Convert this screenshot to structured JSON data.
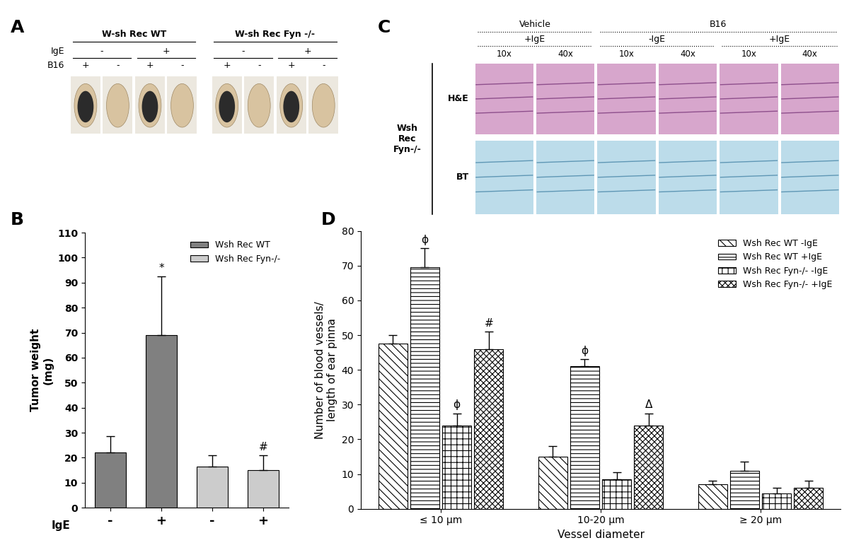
{
  "panel_a": {
    "panel": "A",
    "row_labels": [
      "IgE",
      "B16"
    ],
    "groups": [
      {
        "title": "W-sh Rec WT",
        "ige": [
          "-",
          "+"
        ],
        "b16": [
          "+",
          "-",
          "+",
          "-"
        ]
      },
      {
        "title": "W-sh Rec Fyn -/-",
        "ige": [
          "-",
          "+"
        ],
        "b16": [
          "+",
          "-",
          "+",
          "-"
        ]
      }
    ]
  },
  "panel_c": {
    "panel": "C",
    "strain": "Wsh\nRec\nFyn-/-",
    "rows": [
      "H&E",
      "BT"
    ],
    "groups": [
      {
        "text": "Vehicle",
        "conditions": [
          {
            "text": "+IgE",
            "magnifications": [
              "10x",
              "40x"
            ]
          }
        ]
      },
      {
        "text": "B16",
        "conditions": [
          {
            "text": "-IgE",
            "magnifications": [
              "10x",
              "40x"
            ]
          },
          {
            "text": "+IgE",
            "magnifications": [
              "10x",
              "40x"
            ]
          }
        ]
      }
    ]
  },
  "chart_data": [
    {
      "panel": "B",
      "type": "bar",
      "xlabel": "IgE",
      "ylabel": "Tumor weight\n(mg)",
      "categories": [
        "-",
        "+",
        "-",
        "+"
      ],
      "series": [
        {
          "name": "Wsh Rec WT",
          "color": "#808080",
          "values": [
            22,
            69,
            null,
            null
          ],
          "errors": [
            6.5,
            23.5,
            null,
            null
          ]
        },
        {
          "name": "Wsh Rec Fyn-/-",
          "color": "#cccccc",
          "values": [
            null,
            null,
            16.5,
            15
          ],
          "errors": [
            null,
            null,
            4.5,
            6
          ]
        }
      ],
      "annotations": [
        {
          "series": 0,
          "category": 1,
          "text": "*"
        },
        {
          "series": 1,
          "category": 3,
          "text": "#"
        }
      ],
      "ylim": [
        0,
        110
      ],
      "yticks": [
        0,
        10,
        20,
        30,
        40,
        50,
        60,
        70,
        80,
        90,
        100,
        110
      ],
      "legend": "upper right"
    },
    {
      "panel": "D",
      "type": "bar",
      "xlabel": "Vessel diameter",
      "ylabel": "Number of blood vessels/\nlength of ear pinna",
      "categories": [
        "≤ 10 μm",
        "10-20 μm",
        "≥ 20 μm"
      ],
      "series": [
        {
          "name": "Wsh Rec WT -IgE",
          "color": "#ffffff",
          "values": [
            47.5,
            15,
            7
          ],
          "errors": [
            2.5,
            3,
            1
          ]
        },
        {
          "name": "Wsh Rec WT +IgE",
          "color": "#ffffff",
          "values": [
            69.5,
            41,
            11
          ],
          "errors": [
            5.5,
            2,
            2.5
          ]
        },
        {
          "name": "Wsh Rec Fyn-/- -IgE",
          "color": "#ffffff",
          "values": [
            24,
            8.5,
            4.5
          ],
          "errors": [
            3.5,
            2,
            1.5
          ]
        },
        {
          "name": "Wsh Rec Fyn-/- +IgE",
          "color": "#ffffff",
          "values": [
            46,
            24,
            6
          ],
          "errors": [
            5,
            3.5,
            2
          ]
        }
      ],
      "annotations": [
        {
          "series": 1,
          "category": 0,
          "text": "ϕ"
        },
        {
          "series": 2,
          "category": 0,
          "text": "ϕ"
        },
        {
          "series": 3,
          "category": 0,
          "text": "#"
        },
        {
          "series": 1,
          "category": 1,
          "text": "ϕ"
        },
        {
          "series": 3,
          "category": 1,
          "text": "Δ"
        }
      ],
      "ylim": [
        0,
        80
      ],
      "yticks": [
        0,
        10,
        20,
        30,
        40,
        50,
        60,
        70,
        80
      ],
      "legend": "upper right"
    }
  ]
}
